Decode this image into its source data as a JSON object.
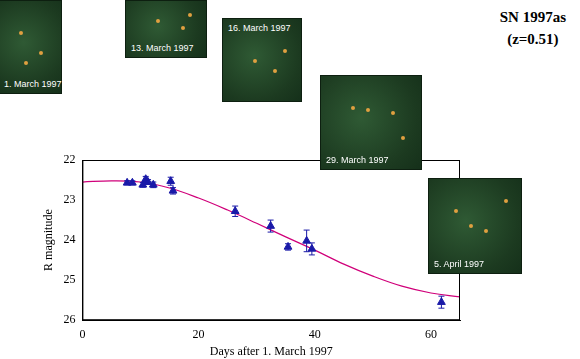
{
  "chart_data": {
    "type": "scatter",
    "title": "SN 1997as",
    "subtitle": "(z=0.51)",
    "xlabel": "Days after 1. March 1997",
    "ylabel": "R magnitude",
    "annotations": [
      "1. March 1997",
      "13. March 1997",
      "16. March 1997",
      "29. March 1997",
      "5. April 1997"
    ],
    "xlim": [
      0,
      65
    ],
    "xticks": [
      0,
      20,
      40,
      60
    ],
    "ylim": [
      26,
      22
    ],
    "yticks": [
      22,
      23,
      24,
      25,
      26
    ],
    "grid": false,
    "series": [
      {
        "type": "scatter",
        "color": "#1a1aa8",
        "marker": "triangle",
        "x": [
          7.7,
          8.6,
          10.4,
          10.9,
          11.3,
          12.2,
          15.2,
          15.6,
          26.3,
          32.4,
          35.4,
          38.6,
          39.5,
          61.8
        ],
        "values": [
          22.57,
          22.57,
          22.62,
          22.48,
          22.55,
          22.62,
          22.53,
          22.77,
          23.28,
          23.65,
          24.17,
          24.02,
          24.22,
          25.55
        ],
        "errors": [
          0.05,
          0.05,
          0.06,
          0.07,
          0.06,
          0.07,
          0.1,
          0.08,
          0.13,
          0.15,
          0.08,
          0.27,
          0.15,
          0.15
        ]
      },
      {
        "type": "line",
        "color": "#d0007a",
        "line_style": "solid",
        "x": [
          0,
          5,
          10,
          15,
          20,
          25,
          30,
          35,
          40,
          45,
          50,
          55,
          60,
          65
        ],
        "values": [
          22.55,
          22.52,
          22.55,
          22.7,
          22.95,
          23.25,
          23.58,
          23.92,
          24.25,
          24.6,
          24.9,
          25.15,
          25.32,
          25.42
        ]
      }
    ]
  }
}
